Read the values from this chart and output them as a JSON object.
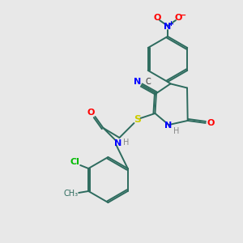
{
  "bg_color": "#e8e8e8",
  "bond_color": "#2d6b5e",
  "atom_colors": {
    "N": "#0000ff",
    "O": "#ff0000",
    "S": "#cccc00",
    "Cl": "#00bb00",
    "H": "#888888",
    "NO2_N": "#0000ff",
    "NO2_O": "#ff0000"
  },
  "figsize": [
    3.0,
    3.0
  ],
  "dpi": 100
}
